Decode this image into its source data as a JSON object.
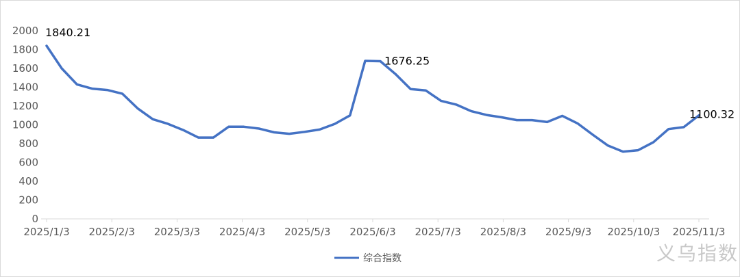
{
  "chart_data": {
    "type": "line",
    "title": "",
    "xlabel": "",
    "ylabel": "",
    "ylim": [
      0,
      2000
    ],
    "yticks": [
      0,
      200,
      400,
      600,
      800,
      1000,
      1200,
      1400,
      1600,
      1800,
      2000
    ],
    "xtick_labels": [
      "2025/1/3",
      "2025/2/3",
      "2025/3/3",
      "2025/4/3",
      "2025/5/3",
      "2025/6/3",
      "2025/7/3",
      "2025/8/3",
      "2025/9/3",
      "2025/10/3",
      "2025/11/3"
    ],
    "grid": false,
    "legend_position": "bottom",
    "series": [
      {
        "name": "综合指数",
        "color": "#4472C4",
        "values": [
          1840.21,
          1600,
          1430,
          1385,
          1370,
          1330,
          1175,
          1060,
          1010,
          945,
          865,
          865,
          980,
          980,
          960,
          920,
          905,
          925,
          950,
          1010,
          1100,
          1680,
          1676.25,
          1540,
          1380,
          1365,
          1255,
          1215,
          1145,
          1105,
          1080,
          1050,
          1050,
          1030,
          1095,
          1015,
          895,
          780,
          715,
          730,
          815,
          955,
          975,
          1100.32
        ]
      }
    ],
    "data_labels": [
      {
        "index": 0,
        "text": "1840.21"
      },
      {
        "index": 22,
        "text": "1676.25"
      },
      {
        "index": 43,
        "text": "1100.32"
      }
    ]
  },
  "watermark": "义乌指数"
}
